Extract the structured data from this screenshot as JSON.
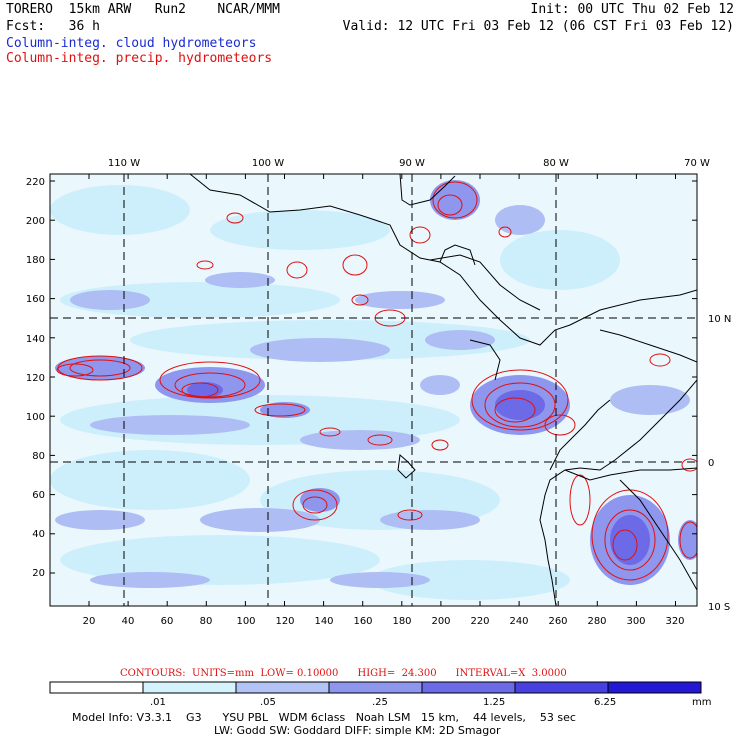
{
  "header": {
    "model_line": "TORERO  15km ARW   Run2    NCAR/MMM",
    "init_line": "Init: 00 UTC Thu 02 Feb 12",
    "fcst_line": "Fcst:   36 h",
    "valid_line": "Valid: 12 UTC Fri 03 Feb 12 (06 CST Fri 03 Feb 12)",
    "field_cloud": "Column-integ. cloud hydrometeors",
    "field_precip": "Column-integ. precip. hydrometeors"
  },
  "map": {
    "top_lon_labels": [
      "110 W",
      "100 W",
      "90 W",
      "80 W",
      "70 W"
    ],
    "right_lat_labels": [
      "10 N",
      "0",
      "10 S"
    ],
    "left_y_ticks": [
      "220",
      "200",
      "180",
      "160",
      "140",
      "120",
      "100",
      "80",
      "60",
      "40",
      "20"
    ],
    "bottom_x_ticks": [
      "20",
      "40",
      "60",
      "80",
      "100",
      "120",
      "140",
      "160",
      "180",
      "200",
      "220",
      "240",
      "260",
      "280",
      "300",
      "320"
    ]
  },
  "contours": {
    "units_label": "CONTOURS:  UNITS=mm",
    "low_label": "LOW= 0.10000",
    "high_label": "HIGH=  24.300",
    "interval_label": "INTERVAL=X  3.0000"
  },
  "colorbar": {
    "labels": [
      ".01",
      ".05",
      ".25",
      "1.25",
      "6.25"
    ],
    "units": "mm",
    "colors": [
      "#ffffff",
      "#d4f3fd",
      "#b2c3f5",
      "#8f96ee",
      "#6c6ae6",
      "#4840e0",
      "#2218d6"
    ]
  },
  "footer": {
    "line1": "Model Info: V3.3.1    G3      YSU PBL   WDM 6class   Noah LSM   15 km,    44 levels,    53 sec",
    "line2": "LW: Godd SW: Goddard DIFF: simple KM: 2D Smagor"
  }
}
